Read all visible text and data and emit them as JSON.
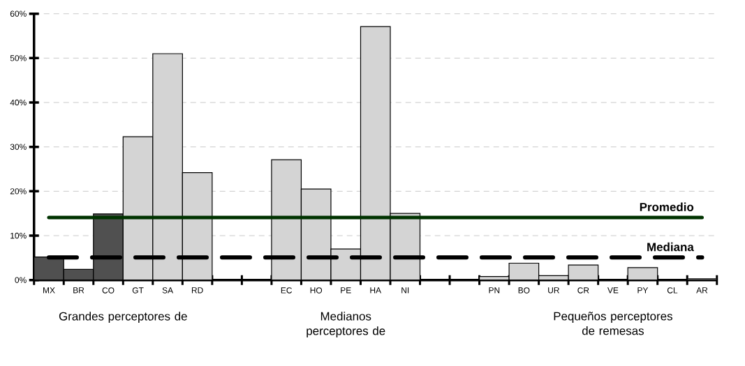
{
  "chart_data": {
    "type": "bar",
    "categories": [
      "MX",
      "BR",
      "CO",
      "GT",
      "SA",
      "RD",
      null,
      null,
      "EC",
      "HO",
      "PE",
      "HA",
      "NI",
      null,
      null,
      "PN",
      "BO",
      "UR",
      "CR",
      "VE",
      "PY",
      "CL",
      "AR"
    ],
    "values": [
      5.2,
      2.4,
      14.9,
      32.3,
      51.0,
      24.2,
      null,
      null,
      27.1,
      20.5,
      7.0,
      57.1,
      15.0,
      null,
      null,
      0.8,
      3.8,
      1.0,
      3.4,
      null,
      2.8,
      null,
      0.3
    ],
    "colors": [
      "#505050",
      "#505050",
      "#505050",
      "#d4d4d4",
      "#d4d4d4",
      "#d4d4d4",
      null,
      null,
      "#d4d4d4",
      "#d4d4d4",
      "#d4d4d4",
      "#d4d4d4",
      "#d4d4d4",
      null,
      null,
      "#d4d4d4",
      "#d4d4d4",
      "#d4d4d4",
      "#d4d4d4",
      null,
      "#d4d4d4",
      null,
      "#d4d4d4"
    ],
    "ylim": [
      0,
      60
    ],
    "yticks": [
      {
        "value": 0,
        "label": "0%"
      },
      {
        "value": 10,
        "label": "10%"
      },
      {
        "value": 20,
        "label": "20%"
      },
      {
        "value": 30,
        "label": "30%"
      },
      {
        "value": 40,
        "label": "40%"
      },
      {
        "value": 50,
        "label": "50%"
      },
      {
        "value": 60,
        "label": "60%"
      }
    ],
    "grid": "y",
    "ref_lines": [
      {
        "axis": "y",
        "value": 14.1,
        "label": "Promedio",
        "color": "#003300",
        "line_style": "solid"
      },
      {
        "axis": "y",
        "value": 5.1,
        "label": "Mediana",
        "color": "#000000",
        "line_style": "dashed"
      }
    ],
    "annotations": [
      "Grandes perceptores de",
      "Medianos perceptores de",
      "Pequeños perceptores de remesas"
    ]
  }
}
